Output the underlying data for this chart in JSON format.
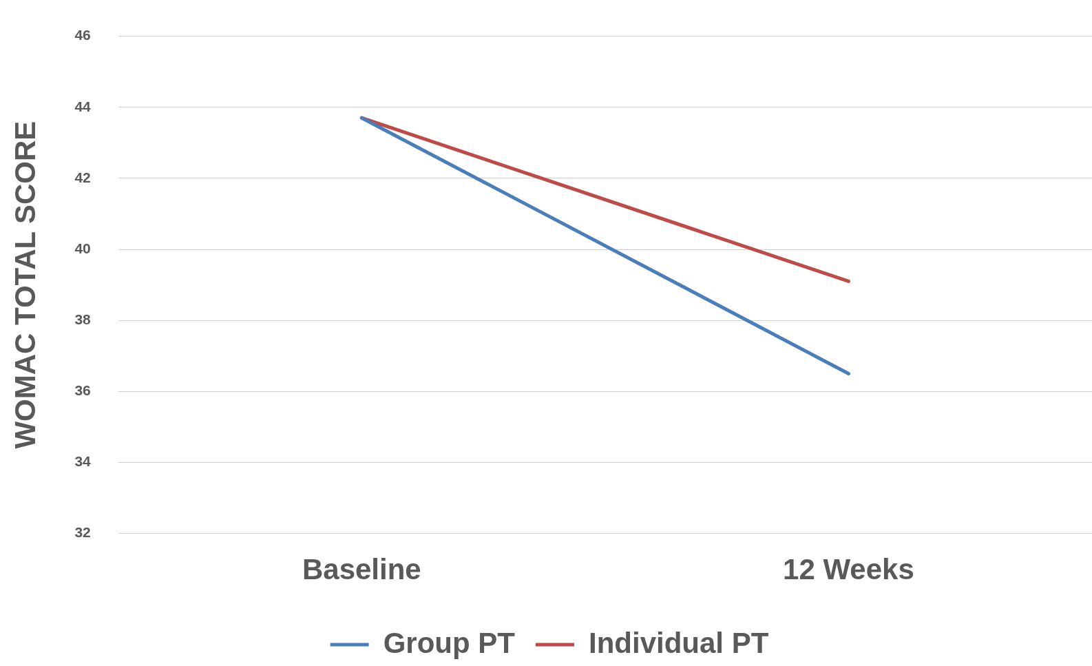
{
  "chart_data": {
    "type": "line",
    "ylabel": "WOMAC TOTAL SCORE",
    "categories": [
      "Baseline",
      "12 Weeks"
    ],
    "series": [
      {
        "name": "Group PT",
        "color": "#4a7ebb",
        "values": [
          43.7,
          36.5
        ]
      },
      {
        "name": "Individual PT",
        "color": "#be4b48",
        "values": [
          43.7,
          39.1
        ]
      }
    ],
    "ylim": [
      32,
      46
    ],
    "yticks": [
      32,
      34,
      36,
      38,
      40,
      42,
      44,
      46
    ],
    "grid": "y",
    "legend": "bottom",
    "marker": "none",
    "line_style": "solid"
  }
}
